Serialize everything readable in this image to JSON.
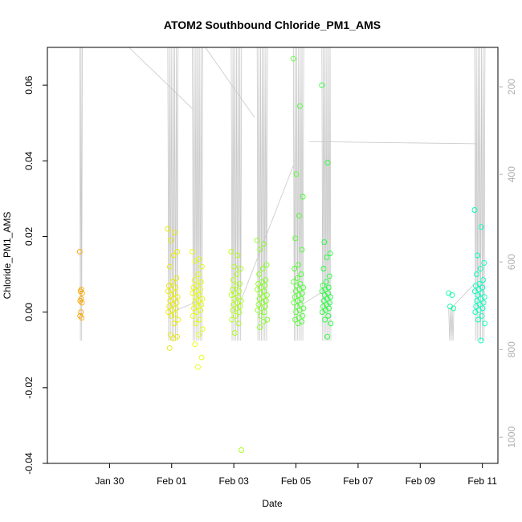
{
  "chart_data": {
    "type": "scatter",
    "title": "ATOM2 Southbound Chloride_PM1_AMS",
    "xlabel": "Date",
    "ylabel": "Chloride_PM1_AMS",
    "xlim": [
      "2017-01-28T00:00",
      "2017-02-11T12:00"
    ],
    "ylim": [
      -0.04,
      0.07
    ],
    "x_ticks": [
      "Jan 30",
      "Feb 01",
      "Feb 03",
      "Feb 05",
      "Feb 07",
      "Feb 09",
      "Feb 11"
    ],
    "x_tick_dates": [
      "2017-01-30",
      "2017-02-01",
      "2017-02-03",
      "2017-02-05",
      "2017-02-07",
      "2017-02-09",
      "2017-02-11"
    ],
    "y_ticks": [
      -0.04,
      -0.02,
      0.0,
      0.02,
      0.04,
      0.06
    ],
    "y_tick_labels": [
      "-0.04",
      "-0.02",
      "0.00",
      "0.02",
      "0.04",
      "0.06"
    ],
    "secondary_axis": {
      "side": "right",
      "reversed": true,
      "ylim": [
        1060,
        110
      ],
      "ticks": [
        200,
        400,
        600,
        800,
        1000
      ],
      "tick_labels": [
        "200",
        "400",
        "600",
        "800",
        "1000"
      ],
      "color": "#b0b0b0",
      "trace_color": "#c8c8c8"
    },
    "marker": "open-circle",
    "color_scale": [
      "#ff8c00",
      "#e8ff00",
      "#00ff44",
      "#00ffcc"
    ],
    "grid": false,
    "legend": "none",
    "groups": [
      {
        "x_start": "2017-01-29T01:00",
        "x_end": "2017-01-29T03:00",
        "points": [
          0.016,
          0.006,
          0.0055,
          0.005,
          0.0035,
          0.003,
          0.0025,
          0.0,
          -0.001,
          -0.0015
        ]
      },
      {
        "x_start": "2017-01-31T21:00",
        "x_end": "2017-02-01T05:00",
        "points": [
          0.022,
          0.021,
          0.019,
          0.016,
          0.015,
          0.012,
          0.009,
          0.008,
          0.007,
          0.0065,
          0.006,
          0.0055,
          0.005,
          0.0045,
          0.004,
          0.0035,
          0.003,
          0.0025,
          0.002,
          0.0015,
          0.001,
          0.0005,
          0.0,
          -0.0005,
          -0.001,
          -0.002,
          -0.003,
          -0.006,
          -0.0065,
          -0.007,
          -0.0095
        ]
      },
      {
        "x_start": "2017-02-01T16:00",
        "x_end": "2017-02-02T00:00",
        "points": [
          0.016,
          0.014,
          0.0135,
          0.012,
          0.01,
          0.0085,
          0.008,
          0.007,
          0.0065,
          0.006,
          0.0055,
          0.005,
          0.0045,
          0.004,
          0.0035,
          0.003,
          0.0025,
          0.002,
          0.0015,
          0.001,
          0.0005,
          0.0,
          -0.001,
          -0.002,
          -0.003,
          -0.0045,
          -0.006,
          -0.0085,
          -0.012,
          -0.0145
        ]
      },
      {
        "x_start": "2017-02-02T22:00",
        "x_end": "2017-02-03T06:00",
        "points": [
          0.016,
          0.015,
          0.012,
          0.0115,
          0.01,
          0.0085,
          0.0075,
          0.007,
          0.006,
          0.0055,
          0.005,
          0.0045,
          0.004,
          0.0035,
          0.003,
          0.0025,
          0.002,
          0.0015,
          0.001,
          0.0005,
          0.0,
          -0.001,
          -0.002,
          -0.003,
          -0.0055,
          -0.0365
        ]
      },
      {
        "x_start": "2017-02-03T18:00",
        "x_end": "2017-02-04T02:00",
        "points": [
          0.019,
          0.018,
          0.0165,
          0.0125,
          0.0115,
          0.01,
          0.0085,
          0.008,
          0.0075,
          0.007,
          0.0065,
          0.006,
          0.0055,
          0.005,
          0.0045,
          0.004,
          0.0035,
          0.003,
          0.0025,
          0.002,
          0.0015,
          0.001,
          0.0005,
          0.0,
          -0.001,
          -0.002,
          -0.0025,
          -0.004
        ]
      },
      {
        "x_start": "2017-02-04T22:00",
        "x_end": "2017-02-05T06:00",
        "points": [
          0.067,
          0.0545,
          0.0365,
          0.0305,
          0.0255,
          0.0195,
          0.0165,
          0.0125,
          0.0115,
          0.01,
          0.009,
          0.008,
          0.0075,
          0.007,
          0.0065,
          0.006,
          0.0055,
          0.005,
          0.0045,
          0.004,
          0.0035,
          0.003,
          0.0025,
          0.002,
          0.0015,
          0.001,
          0.0005,
          0.0,
          -0.001,
          -0.0015,
          -0.002,
          -0.0025,
          -0.003
        ]
      },
      {
        "x_start": "2017-02-05T20:00",
        "x_end": "2017-02-06T03:00",
        "points": [
          0.06,
          0.0395,
          0.0185,
          0.0155,
          0.0145,
          0.0115,
          0.0095,
          0.008,
          0.007,
          0.0065,
          0.006,
          0.0055,
          0.005,
          0.0045,
          0.004,
          0.0035,
          0.003,
          0.0025,
          0.002,
          0.0015,
          0.001,
          0.0005,
          0.0,
          -0.001,
          -0.002,
          -0.003,
          -0.0065
        ]
      },
      {
        "x_start": "2017-02-09T22:00",
        "x_end": "2017-02-10T02:00",
        "points": [
          0.005,
          0.0045,
          0.0015,
          0.001
        ]
      },
      {
        "x_start": "2017-02-10T18:00",
        "x_end": "2017-02-11T02:00",
        "points": [
          0.027,
          0.0225,
          0.015,
          0.013,
          0.0115,
          0.01,
          0.0085,
          0.0075,
          0.007,
          0.0065,
          0.006,
          0.0055,
          0.005,
          0.0045,
          0.004,
          0.0035,
          0.003,
          0.0025,
          0.002,
          0.0015,
          0.001,
          0.0005,
          0.0,
          -0.001,
          -0.002,
          -0.003,
          -0.0075
        ]
      }
    ]
  }
}
